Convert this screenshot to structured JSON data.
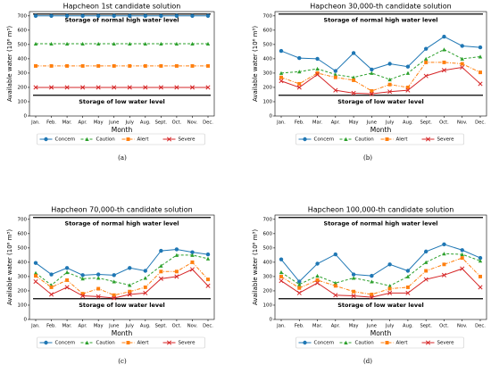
{
  "chart_data": [
    {
      "type": "line",
      "title": "Hapcheon  1st candidate solution",
      "caption": "(a)",
      "x_label": "Month",
      "y_label": "Available water (10⁶ m³)",
      "categories": [
        "Jan.",
        "Feb.",
        "Mar.",
        "Apr.",
        "May",
        "June",
        "July",
        "Aug.",
        "Sept.",
        "Oct.",
        "Nov.",
        "Dec."
      ],
      "ylim": [
        0,
        730
      ],
      "yticks": [
        0,
        100,
        200,
        300,
        400,
        500,
        600,
        700
      ],
      "reference_lines": [
        {
          "label": "Storage of normal high water level",
          "value": 713,
          "color": "#000000"
        },
        {
          "label": "Storage of low water level",
          "value": 145,
          "color": "#000000"
        }
      ],
      "series": [
        {
          "name": "Concern",
          "color": "#1f77b4",
          "marker": "circle",
          "linestyle": "solid",
          "values": [
            700,
            700,
            700,
            700,
            700,
            700,
            700,
            700,
            700,
            700,
            700,
            700
          ]
        },
        {
          "name": "Caution",
          "color": "#2ca02c",
          "marker": "triangle",
          "linestyle": "dashed",
          "values": [
            505,
            505,
            505,
            505,
            505,
            505,
            505,
            505,
            505,
            505,
            505,
            505
          ]
        },
        {
          "name": "Alert",
          "color": "#ff7f0e",
          "marker": "square",
          "linestyle": "dashdot",
          "values": [
            350,
            350,
            350,
            350,
            350,
            350,
            350,
            350,
            350,
            350,
            350,
            350
          ]
        },
        {
          "name": "Severe",
          "color": "#d62728",
          "marker": "x",
          "linestyle": "solid",
          "values": [
            200,
            200,
            200,
            200,
            200,
            200,
            200,
            200,
            200,
            200,
            200,
            200
          ]
        }
      ]
    },
    {
      "type": "line",
      "title": "Hapcheon  30,000-th candidate solution",
      "caption": "(b)",
      "x_label": "Month",
      "y_label": "Available water (10⁶ m³)",
      "categories": [
        "Jan.",
        "Feb.",
        "Mar.",
        "Apr.",
        "May",
        "June",
        "July",
        "Aug.",
        "Sept.",
        "Oct.",
        "Nov.",
        "Dec."
      ],
      "ylim": [
        0,
        730
      ],
      "yticks": [
        0,
        100,
        200,
        300,
        400,
        500,
        600,
        700
      ],
      "reference_lines": [
        {
          "label": "Storage of normal high water level",
          "value": 713,
          "color": "#000000"
        },
        {
          "label": "Storage of low water level",
          "value": 145,
          "color": "#000000"
        }
      ],
      "series": [
        {
          "name": "Concern",
          "color": "#1f77b4",
          "marker": "circle",
          "linestyle": "solid",
          "values": [
            455,
            405,
            400,
            315,
            440,
            325,
            365,
            345,
            470,
            555,
            490,
            480
          ]
        },
        {
          "name": "Caution",
          "color": "#2ca02c",
          "marker": "triangle",
          "linestyle": "dashed",
          "values": [
            300,
            310,
            330,
            290,
            270,
            300,
            255,
            300,
            400,
            465,
            400,
            415
          ]
        },
        {
          "name": "Alert",
          "color": "#ff7f0e",
          "marker": "square",
          "linestyle": "dashdot",
          "values": [
            270,
            225,
            300,
            270,
            250,
            175,
            220,
            200,
            375,
            375,
            365,
            305
          ]
        },
        {
          "name": "Severe",
          "color": "#d62728",
          "marker": "x",
          "linestyle": "solid",
          "values": [
            245,
            200,
            290,
            180,
            160,
            155,
            170,
            180,
            280,
            320,
            340,
            225
          ]
        }
      ]
    },
    {
      "type": "line",
      "title": "Hapcheon  70,000-th candidate solution",
      "caption": "(c)",
      "x_label": "Month",
      "y_label": "Available water (10⁶ m³)",
      "categories": [
        "Jan.",
        "Feb.",
        "Mar.",
        "Apr.",
        "May",
        "June",
        "July",
        "Aug.",
        "Sept.",
        "Oct.",
        "Nov.",
        "Dec."
      ],
      "ylim": [
        0,
        730
      ],
      "yticks": [
        0,
        100,
        200,
        300,
        400,
        500,
        600,
        700
      ],
      "reference_lines": [
        {
          "label": "Storage of normal high water level",
          "value": 713,
          "color": "#000000"
        },
        {
          "label": "Storage of low water level",
          "value": 145,
          "color": "#000000"
        }
      ],
      "series": [
        {
          "name": "Concern",
          "color": "#1f77b4",
          "marker": "circle",
          "linestyle": "solid",
          "values": [
            395,
            315,
            360,
            310,
            315,
            310,
            360,
            340,
            480,
            490,
            470,
            455
          ]
        },
        {
          "name": "Caution",
          "color": "#2ca02c",
          "marker": "triangle",
          "linestyle": "dashed",
          "values": [
            325,
            240,
            330,
            285,
            290,
            265,
            240,
            290,
            375,
            450,
            450,
            425
          ]
        },
        {
          "name": "Alert",
          "color": "#ff7f0e",
          "marker": "square",
          "linestyle": "dashdot",
          "values": [
            305,
            225,
            275,
            180,
            215,
            170,
            195,
            225,
            335,
            335,
            400,
            280
          ]
        },
        {
          "name": "Severe",
          "color": "#d62728",
          "marker": "x",
          "linestyle": "solid",
          "values": [
            265,
            175,
            225,
            165,
            160,
            150,
            175,
            185,
            285,
            300,
            350,
            235
          ]
        }
      ]
    },
    {
      "type": "line",
      "title": "Hapcheon  100,000-th candidate solution",
      "caption": "(d)",
      "x_label": "Month",
      "y_label": "Available water (10⁶ m³)",
      "categories": [
        "Jan.",
        "Feb.",
        "Mar.",
        "Apr.",
        "May",
        "June",
        "July",
        "Aug.",
        "Sept.",
        "Oct.",
        "Nov.",
        "Dec."
      ],
      "ylim": [
        0,
        730
      ],
      "yticks": [
        0,
        100,
        200,
        300,
        400,
        500,
        600,
        700
      ],
      "reference_lines": [
        {
          "label": "Storage of normal high water level",
          "value": 713,
          "color": "#000000"
        },
        {
          "label": "Storage of low water level",
          "value": 145,
          "color": "#000000"
        }
      ],
      "series": [
        {
          "name": "Concern",
          "color": "#1f77b4",
          "marker": "circle",
          "linestyle": "solid",
          "values": [
            420,
            265,
            390,
            455,
            315,
            305,
            385,
            340,
            475,
            525,
            485,
            430
          ]
        },
        {
          "name": "Caution",
          "color": "#2ca02c",
          "marker": "triangle",
          "linestyle": "dashed",
          "values": [
            330,
            245,
            305,
            255,
            290,
            265,
            235,
            300,
            400,
            460,
            455,
            410
          ]
        },
        {
          "name": "Alert",
          "color": "#ff7f0e",
          "marker": "square",
          "linestyle": "dashdot",
          "values": [
            300,
            220,
            275,
            235,
            195,
            175,
            215,
            225,
            340,
            385,
            430,
            300
          ]
        },
        {
          "name": "Severe",
          "color": "#d62728",
          "marker": "x",
          "linestyle": "solid",
          "values": [
            270,
            185,
            255,
            170,
            165,
            155,
            185,
            185,
            280,
            310,
            355,
            225
          ]
        }
      ]
    }
  ]
}
